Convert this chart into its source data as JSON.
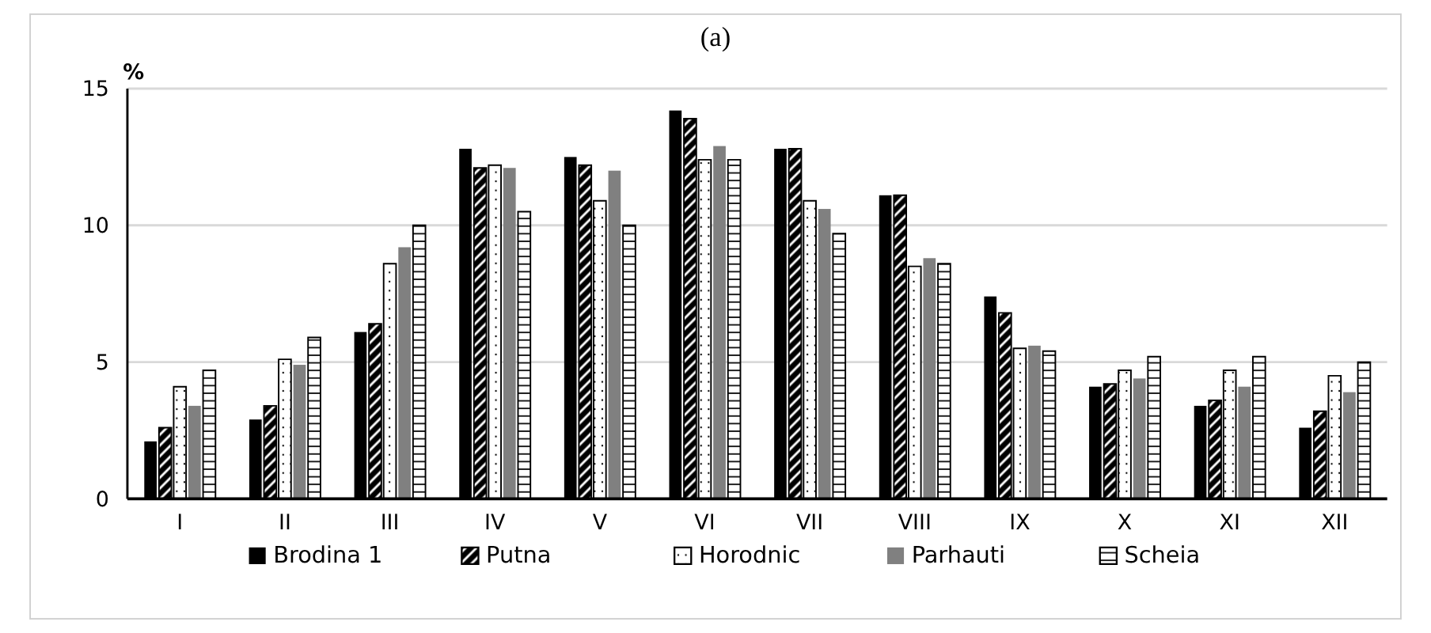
{
  "chart_data": {
    "type": "bar",
    "title": "(a)",
    "ylabel": "%",
    "categories": [
      "I",
      "II",
      "III",
      "IV",
      "V",
      "VI",
      "VII",
      "VIII",
      "IX",
      "X",
      "XI",
      "XII"
    ],
    "series": [
      {
        "name": "Brodina 1",
        "color": "#000000",
        "values": [
          2.1,
          2.9,
          6.1,
          12.8,
          12.5,
          14.2,
          12.8,
          11.1,
          7.4,
          4.1,
          3.4,
          2.6
        ]
      },
      {
        "name": "Putna",
        "color": "#000000",
        "values": [
          2.6,
          3.4,
          6.4,
          12.1,
          12.2,
          13.9,
          12.8,
          11.1,
          6.8,
          4.2,
          3.6,
          3.2
        ]
      },
      {
        "name": "Horodnic",
        "color": "#ffffff",
        "values": [
          4.1,
          5.1,
          8.6,
          12.2,
          10.9,
          12.4,
          10.9,
          8.5,
          5.5,
          4.7,
          4.7,
          4.5
        ]
      },
      {
        "name": "Parhauti",
        "color": "#808080",
        "values": [
          3.4,
          4.9,
          9.2,
          12.1,
          12.0,
          12.9,
          10.6,
          8.8,
          5.6,
          4.4,
          4.1,
          3.9
        ]
      },
      {
        "name": "Scheia",
        "color": "#ffffff",
        "values": [
          4.7,
          5.9,
          10.0,
          10.5,
          10.0,
          12.4,
          9.7,
          8.6,
          5.4,
          5.2,
          5.2,
          5.0
        ]
      }
    ],
    "ylim": [
      0,
      15
    ],
    "yticks": [
      0,
      5,
      10,
      15
    ],
    "grid": "y",
    "legend": "bottom"
  }
}
